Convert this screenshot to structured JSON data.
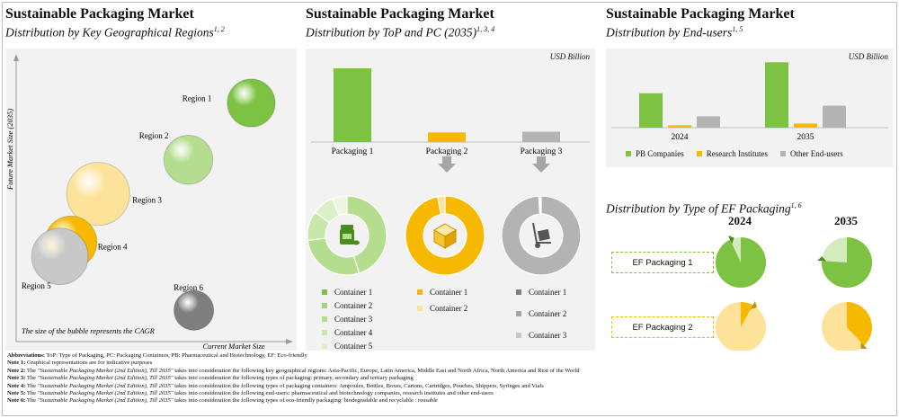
{
  "colors": {
    "green": "#7dc242",
    "green_light": "#b5dd8e",
    "green_lighter": "#d4ebbd",
    "green_lightest": "#e8f5dc",
    "yellow": "#f7b900",
    "yellow_light": "#fde39a",
    "gray": "#b3b3b3",
    "gray_dark": "#7f7f7f",
    "panel_bg": "#f2f2f2"
  },
  "panel1": {
    "title": "Sustainable  Packaging Market",
    "subtitle": "Distribution by Key Geographical Regions",
    "subtitle_sup": "1, 2",
    "ylabel": "Future Market Size (2035)",
    "xlabel": "Current Market Size",
    "note": "The size of the bubble represents the CAGR"
  },
  "panel2": {
    "title": "Sustainable  Packaging Market",
    "subtitle": "Distribution by ToP and PC (2035)",
    "subtitle_sup": "1, 3, 4",
    "unit": "USD Billion"
  },
  "panel3": {
    "title": "Sustainable  Packaging Market",
    "subtitle": "Distribution by End-users",
    "subtitle_sup": "1, 5",
    "unit": "USD Billion",
    "ef_title": "Distribution by Type of EF Packaging",
    "ef_sup": "1, 6"
  },
  "chart_data": [
    {
      "type": "scatter",
      "title": "Sustainable  Packaging Market",
      "subtitle": "Distribution by Key Geographical Regions",
      "xlabel": "Current Market Size",
      "ylabel": "Future Market Size (2035)",
      "annotation": "The size of the bubble represents the CAGR",
      "points": [
        {
          "label": "Region 1",
          "x": 0.86,
          "y": 0.84,
          "size": 0.62,
          "color": "#7dc242"
        },
        {
          "label": "Region 2",
          "x": 0.63,
          "y": 0.64,
          "size": 0.64,
          "color": "#b5dd8e"
        },
        {
          "label": "Region 3",
          "x": 0.3,
          "y": 0.52,
          "size": 0.9,
          "color": "#fde39a"
        },
        {
          "label": "Region 4",
          "x": 0.2,
          "y": 0.35,
          "size": 0.7,
          "color": "#f7b900"
        },
        {
          "label": "Region 5",
          "x": 0.16,
          "y": 0.3,
          "size": 0.78,
          "color": "#c8c8c8"
        },
        {
          "label": "Region 6",
          "x": 0.65,
          "y": 0.11,
          "size": 0.47,
          "color": "#7f7f7f"
        }
      ]
    },
    {
      "type": "bar",
      "title": "Sustainable  Packaging Market",
      "subtitle": "Distribution by ToP and PC (2035)",
      "unit": "USD Billion",
      "categories": [
        "Packaging  1",
        "Packaging  2",
        "Packaging  3"
      ],
      "values": [
        100,
        13,
        14
      ],
      "colors": [
        "#7dc242",
        "#f7b900",
        "#b3b3b3"
      ]
    },
    {
      "type": "pie",
      "donuts": [
        {
          "name": "Packaging  1",
          "legend": [
            "Container 1",
            "Container 2",
            "Container 3",
            "Container 4",
            "Container 5"
          ],
          "values": [
            45,
            28,
            12,
            9,
            6
          ],
          "colors": [
            "#b5dd8e",
            "#b5dd8e",
            "#c9e6ab",
            "#dcefc9",
            "#ecf6e2"
          ],
          "center_icon": "medicine-bottle-icon"
        },
        {
          "name": "Packaging  2",
          "legend": [
            "Container 1",
            "Container 2"
          ],
          "values": [
            97,
            3
          ],
          "colors": [
            "#f7b900",
            "#fde39a"
          ],
          "center_icon": "box-icon"
        },
        {
          "name": "Packaging  3",
          "legend": [
            "Container 1",
            "Container 2",
            "Container 3"
          ],
          "values": [
            99,
            0.5,
            0.5
          ],
          "colors": [
            "#b3b3b3",
            "#d6d6d6",
            "#e5e5e5"
          ],
          "center_icon": "hand-truck-icon"
        }
      ]
    },
    {
      "type": "bar",
      "title": "Sustainable  Packaging Market",
      "subtitle": "Distribution by End-users",
      "unit": "USD Billion",
      "categories": [
        "2024",
        "2035"
      ],
      "series": [
        {
          "name": "PB Companies",
          "values": [
            58,
            110
          ],
          "color": "#7dc242"
        },
        {
          "name": "Research Institutes",
          "values": [
            4,
            7
          ],
          "color": "#f7b900"
        },
        {
          "name": "Other End-users",
          "values": [
            19,
            37
          ],
          "color": "#b3b3b3"
        }
      ],
      "ylim": [
        0,
        115
      ]
    },
    {
      "type": "pie",
      "title": "Distribution by Type of EF Packaging",
      "years": [
        "2024",
        "2035"
      ],
      "rows": [
        {
          "name": "EF Packaging  1",
          "shares": [
            0.93,
            0.76
          ],
          "color": "#7dc242",
          "light": "#d4ebbd"
        },
        {
          "name": "EF Packaging  2",
          "shares": [
            0.08,
            0.38
          ],
          "color": "#f7b900",
          "light": "#fde39a"
        }
      ]
    }
  ],
  "notes": {
    "abbrev_label": "Abbreviations:",
    "abbrev_text": " ToP: Type of Packaging, PC: Packaging Containers, PB: Pharmaceutical and Biotechnology, EF: Eco-friendly",
    "note1_label": "Note 1:",
    "note1_text": " Graphical representations are for indicative purposes",
    "report_name": "\"Sustainable Packaging Market (2nd Edition), Till 2035\"",
    "note2_label": "Note 2:",
    "note2_text": " takes into consideration the following key geographical regions: Asia-Pacific, Europe, Latin America, Middle East and North Africa, North America and Rest of the World",
    "note3_label": "Note 3:",
    "note3_text": " takes into consideration the following types of packaging: primary, secondary and tertiary packaging",
    "note4_label": "Note 4:",
    "note4_text": " takes into consideration the following types of packaging containers: Ampoules, Bottles, Boxes, Cartons, Cartridges, Pouches, Shippers, Syringes and Vials",
    "note5_label": "Note 5:",
    "note5_text": " takes into consideration the following end-users: pharmaceutical and biotechnology companies, research institutes and other end-users",
    "note6_label": "Note 6:",
    "note6_text": " takes into consideration the following types of eco-friendly packaging: biodegradable and recyclable : reusable"
  }
}
